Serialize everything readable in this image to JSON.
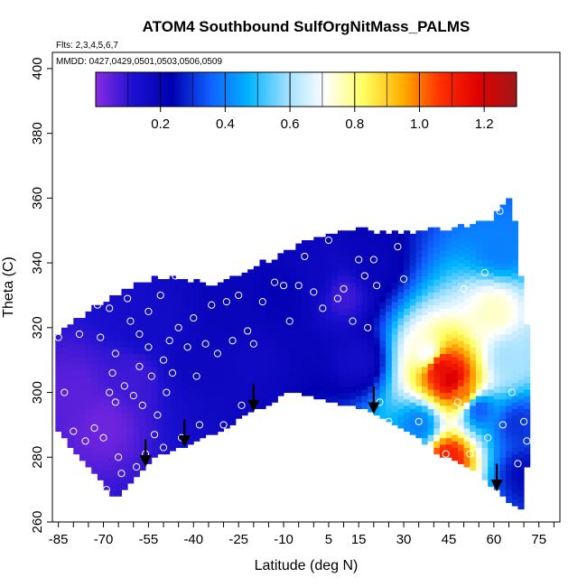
{
  "chart_data": {
    "type": "heatmap",
    "title": "ATOM4 Southbound SulfOrgNitMass_PALMS",
    "flights_note": "Flts: 2,3,4,5,6,7",
    "dates_note": "MMDD: 0427,0429,0501,0503,0506,0509",
    "xlabel": "Latitude (deg N)",
    "ylabel": "Theta (C)",
    "xlim": [
      -87,
      82
    ],
    "ylim": [
      260,
      405
    ],
    "x_ticks": [
      -85,
      -70,
      -55,
      -40,
      -25,
      -10,
      5,
      15,
      30,
      45,
      60,
      75
    ],
    "x_tick_labels": [
      "-85",
      "-70",
      "-55",
      "-40",
      "-25",
      "-10",
      "5",
      "15",
      "30",
      "45",
      "60",
      "75"
    ],
    "y_ticks": [
      260,
      280,
      300,
      320,
      340,
      360,
      380,
      400
    ],
    "y_tick_labels": [
      "260",
      "280",
      "300",
      "320",
      "340",
      "360",
      "380",
      "400"
    ],
    "colorbar": {
      "range": [
        0.0,
        1.3
      ],
      "ticks": [
        0.2,
        0.4,
        0.6,
        0.8,
        1.0,
        1.2
      ],
      "tick_labels": [
        "0.2",
        "0.4",
        "0.6",
        "0.8",
        "1.0",
        "1.2"
      ],
      "colors": [
        "#8a2be2",
        "#1a10d0",
        "#0000b0",
        "#1060ff",
        "#00b4ff",
        "#a0e0ff",
        "#ffffff",
        "#ffff60",
        "#ffb000",
        "#ff3000",
        "#e00000",
        "#a01818"
      ]
    },
    "domain_top": [
      [
        -86,
        318
      ],
      [
        -80,
        322
      ],
      [
        -72,
        327
      ],
      [
        -62,
        332
      ],
      [
        -52,
        336
      ],
      [
        -42,
        335
      ],
      [
        -32,
        333
      ],
      [
        -22,
        338
      ],
      [
        -12,
        342
      ],
      [
        -2,
        347
      ],
      [
        8,
        350
      ],
      [
        18,
        350
      ],
      [
        28,
        349
      ],
      [
        38,
        350
      ],
      [
        48,
        351
      ],
      [
        58,
        353
      ],
      [
        63,
        357
      ],
      [
        66,
        360
      ],
      [
        68,
        345
      ],
      [
        70,
        328
      ],
      [
        72,
        312
      ]
    ],
    "domain_bottom": [
      [
        -86,
        290
      ],
      [
        -78,
        280
      ],
      [
        -70,
        272
      ],
      [
        -66,
        267
      ],
      [
        -60,
        273
      ],
      [
        -54,
        280
      ],
      [
        -48,
        282
      ],
      [
        -40,
        285
      ],
      [
        -30,
        289
      ],
      [
        -22,
        294
      ],
      [
        -14,
        297
      ],
      [
        -8,
        301
      ],
      [
        0,
        299
      ],
      [
        8,
        297
      ],
      [
        18,
        295
      ],
      [
        26,
        291
      ],
      [
        34,
        287
      ],
      [
        42,
        281
      ],
      [
        48,
        279
      ],
      [
        54,
        276
      ],
      [
        60,
        271
      ],
      [
        66,
        266
      ],
      [
        70,
        264
      ],
      [
        72,
        290
      ]
    ],
    "cells": [
      {
        "lat": -80,
        "theta": 300,
        "value": 0.05
      },
      {
        "lat": -70,
        "theta": 290,
        "value": 0.03
      },
      {
        "lat": -60,
        "theta": 305,
        "value": 0.08
      },
      {
        "lat": -55,
        "theta": 320,
        "value": 0.15
      },
      {
        "lat": -40,
        "theta": 310,
        "value": 0.18
      },
      {
        "lat": -30,
        "theta": 325,
        "value": 0.2
      },
      {
        "lat": -20,
        "theta": 310,
        "value": 0.17
      },
      {
        "lat": -10,
        "theta": 330,
        "value": 0.22
      },
      {
        "lat": 0,
        "theta": 335,
        "value": 0.18
      },
      {
        "lat": 10,
        "theta": 330,
        "value": 0.08
      },
      {
        "lat": 15,
        "theta": 310,
        "value": 0.15
      },
      {
        "lat": 20,
        "theta": 340,
        "value": 0.2
      },
      {
        "lat": 35,
        "theta": 290,
        "value": 0.4
      },
      {
        "lat": 38,
        "theta": 312,
        "value": 0.7
      },
      {
        "lat": 42,
        "theta": 308,
        "value": 1.15
      },
      {
        "lat": 46,
        "theta": 304,
        "value": 1.2
      },
      {
        "lat": 50,
        "theta": 300,
        "value": 1.0
      },
      {
        "lat": 45,
        "theta": 280,
        "value": 1.1
      },
      {
        "lat": 55,
        "theta": 295,
        "value": 0.35
      },
      {
        "lat": 60,
        "theta": 325,
        "value": 0.75
      },
      {
        "lat": 62,
        "theta": 345,
        "value": 0.4
      },
      {
        "lat": 65,
        "theta": 310,
        "value": 0.6
      },
      {
        "lat": 68,
        "theta": 290,
        "value": 0.3
      },
      {
        "lat": 70,
        "theta": 275,
        "value": 0.25
      }
    ],
    "samples": [
      [
        -85,
        317
      ],
      [
        -83,
        300
      ],
      [
        -80,
        288
      ],
      [
        -78,
        318
      ],
      [
        -76,
        285
      ],
      [
        -73,
        289
      ],
      [
        -72,
        327
      ],
      [
        -71,
        317
      ],
      [
        -70,
        286
      ],
      [
        -69,
        270
      ],
      [
        -68,
        300
      ],
      [
        -68,
        326
      ],
      [
        -67,
        306
      ],
      [
        -66,
        312
      ],
      [
        -66,
        297
      ],
      [
        -65,
        280
      ],
      [
        -64,
        275
      ],
      [
        -63,
        302
      ],
      [
        -62,
        329
      ],
      [
        -61,
        322
      ],
      [
        -60,
        299
      ],
      [
        -59,
        277
      ],
      [
        -58,
        318
      ],
      [
        -58,
        308
      ],
      [
        -57,
        296
      ],
      [
        -56,
        281
      ],
      [
        -55,
        325
      ],
      [
        -55,
        314
      ],
      [
        -54,
        305
      ],
      [
        -53,
        287
      ],
      [
        -52,
        293
      ],
      [
        -51,
        330
      ],
      [
        -50,
        310
      ],
      [
        -50,
        283
      ],
      [
        -49,
        300
      ],
      [
        -48,
        316
      ],
      [
        -47,
        306
      ],
      [
        -46,
        336
      ],
      [
        -45,
        320
      ],
      [
        -44,
        286
      ],
      [
        -42,
        314
      ],
      [
        -40,
        323
      ],
      [
        -39,
        305
      ],
      [
        -38,
        290
      ],
      [
        -36,
        315
      ],
      [
        -34,
        327
      ],
      [
        -32,
        312
      ],
      [
        -30,
        290
      ],
      [
        -29,
        328
      ],
      [
        -27,
        316
      ],
      [
        -25,
        330
      ],
      [
        -24,
        296
      ],
      [
        -22,
        319
      ],
      [
        -20,
        315
      ],
      [
        -17,
        328
      ],
      [
        -13,
        334
      ],
      [
        -10,
        333
      ],
      [
        -8,
        322
      ],
      [
        -5,
        333
      ],
      [
        -3,
        342
      ],
      [
        0,
        331
      ],
      [
        3,
        326
      ],
      [
        5,
        347
      ],
      [
        8,
        329
      ],
      [
        10,
        332
      ],
      [
        13,
        322
      ],
      [
        15,
        341
      ],
      [
        17,
        336
      ],
      [
        18,
        320
      ],
      [
        20,
        341
      ],
      [
        21,
        333
      ],
      [
        22,
        297
      ],
      [
        25,
        291
      ],
      [
        28,
        345
      ],
      [
        30,
        335
      ],
      [
        32,
        316
      ],
      [
        35,
        291
      ],
      [
        40,
        313
      ],
      [
        44,
        281
      ],
      [
        46,
        290
      ],
      [
        48,
        297
      ],
      [
        50,
        332
      ],
      [
        52,
        281
      ],
      [
        54,
        318
      ],
      [
        55,
        327
      ],
      [
        57,
        337
      ],
      [
        58,
        286
      ],
      [
        60,
        320
      ],
      [
        62,
        356
      ],
      [
        63,
        290
      ],
      [
        66,
        300
      ],
      [
        68,
        278
      ],
      [
        70,
        291
      ],
      [
        71,
        285
      ]
    ],
    "arrows": [
      -56,
      -43,
      -20,
      20,
      61
    ]
  }
}
